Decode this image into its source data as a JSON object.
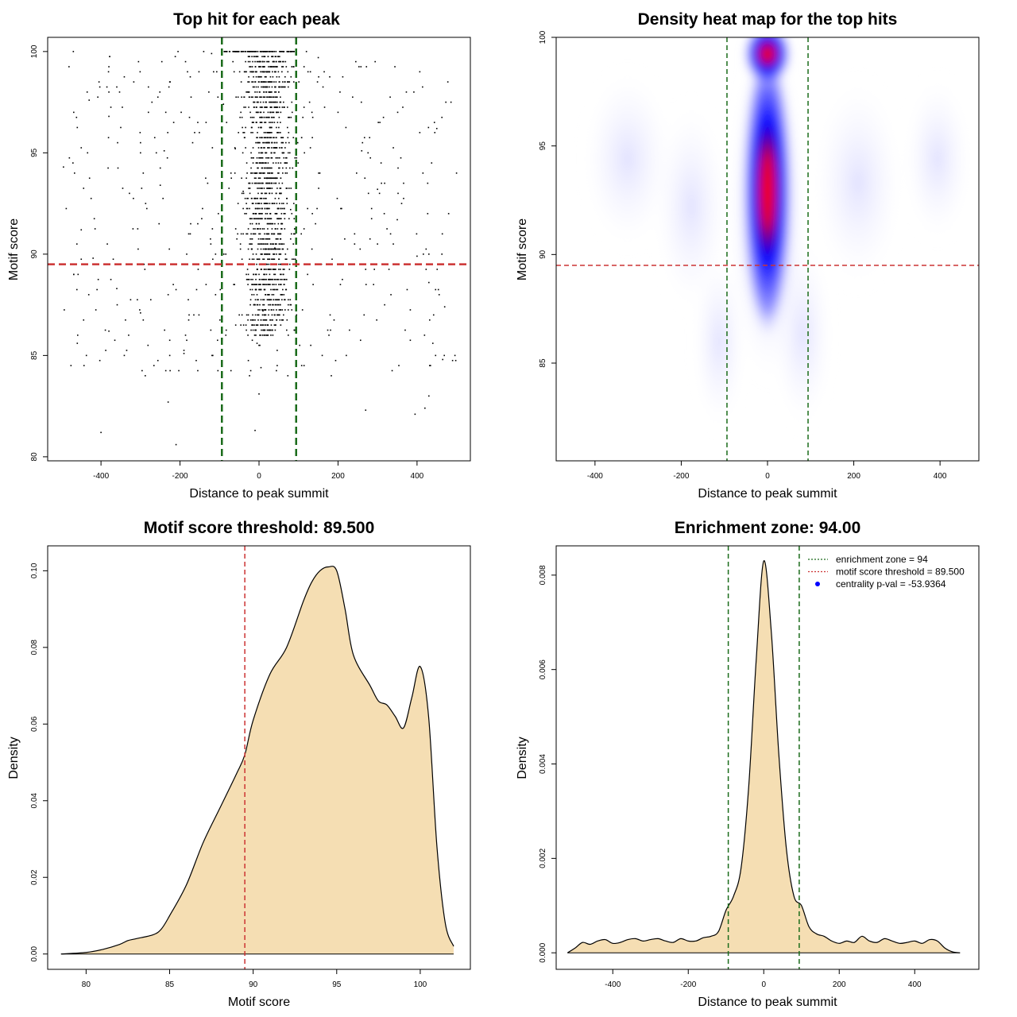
{
  "chart_data": [
    {
      "type": "scatter",
      "title": "Top hit for each peak",
      "xlabel": "Distance to peak summit",
      "ylabel": "Motif score",
      "xlim": [
        -535,
        535
      ],
      "ylim": [
        79.8,
        100.7
      ],
      "xticks": [
        -400,
        -200,
        0,
        200,
        400
      ],
      "yticks": [
        80,
        85,
        90,
        95,
        100
      ],
      "vlines": [
        -94,
        94
      ],
      "hline": 89.5,
      "line_colors": {
        "vline": "#1a6b1a",
        "hline": "#cc3333"
      },
      "point_color": "#000000",
      "points_sample": [
        [
          -470,
          100
        ],
        [
          -430,
          97.6
        ],
        [
          -380,
          96.8
        ],
        [
          -300,
          95
        ],
        [
          -250,
          93.4
        ],
        [
          -450,
          91.2
        ],
        [
          -420,
          89.8
        ],
        [
          -360,
          88.3
        ],
        [
          -300,
          87.1
        ],
        [
          -380,
          86.2
        ],
        [
          -460,
          85.6
        ],
        [
          -190,
          85.1
        ],
        [
          -230,
          82.7
        ],
        [
          -400,
          81.2
        ],
        [
          -210,
          80.6
        ],
        [
          -90,
          97.4
        ],
        [
          -60,
          95.2
        ],
        [
          -40,
          93.1
        ],
        [
          -20,
          91.0
        ],
        [
          0,
          89.0
        ],
        [
          10,
          87.2
        ],
        [
          -5,
          85.6
        ],
        [
          5,
          84.4
        ],
        [
          0,
          83.1
        ],
        [
          -10,
          81.3
        ],
        [
          30,
          96.5
        ],
        [
          60,
          94.0
        ],
        [
          80,
          92.2
        ],
        [
          40,
          90.3
        ],
        [
          150,
          99.7
        ],
        [
          200,
          97.0
        ],
        [
          260,
          95.1
        ],
        [
          300,
          93.2
        ],
        [
          350,
          91.7
        ],
        [
          400,
          89.9
        ],
        [
          430,
          88.6
        ],
        [
          470,
          87.4
        ],
        [
          440,
          85.6
        ],
        [
          465,
          84.8
        ],
        [
          430,
          83.0
        ],
        [
          420,
          82.4
        ],
        [
          395,
          82.1
        ],
        [
          270,
          82.3
        ],
        [
          450,
          96.2
        ],
        [
          500,
          94.0
        ],
        [
          480,
          92.0
        ],
        [
          -495,
          94.3
        ],
        [
          -240,
          95.1
        ],
        [
          -120,
          99.9
        ],
        [
          120,
          100
        ]
      ]
    },
    {
      "type": "heatmap",
      "title": "Density heat map for the top hits",
      "xlabel": "Distance to peak summit",
      "ylabel": "Motif score",
      "xlim": [
        -490,
        490
      ],
      "ylim": [
        80.5,
        100
      ],
      "xticks": [
        -400,
        -200,
        0,
        200,
        400
      ],
      "yticks": [
        85,
        90,
        95,
        100
      ],
      "vlines": [
        -94,
        94
      ],
      "hline": 89.5,
      "color_scale": [
        "#ffffff",
        "#0000ff",
        "#ff0000"
      ],
      "peak": {
        "x": 2,
        "y": 94.0
      }
    },
    {
      "type": "area",
      "title": "Motif score threshold: 89.500",
      "xlabel": "Motif score",
      "ylabel": "Density",
      "xlim": [
        77.7,
        103.0
      ],
      "ylim": [
        -0.004,
        0.1065
      ],
      "xticks": [
        80,
        85,
        90,
        95,
        100
      ],
      "yticks": [
        0.0,
        0.02,
        0.04,
        0.06,
        0.08,
        0.1
      ],
      "ytick_labels": [
        "0.00",
        "0.02",
        "0.04",
        "0.06",
        "0.08",
        "0.10"
      ],
      "vline": 89.5,
      "fill_color": "#f5deb3",
      "x": [
        78.5,
        80,
        81,
        82,
        82.5,
        83,
        84,
        84.5,
        85,
        86,
        87,
        88,
        89,
        89.5,
        90,
        91,
        92,
        93,
        93.5,
        94,
        94.5,
        95,
        95.5,
        96,
        97,
        97.5,
        98,
        98.5,
        99,
        99.5,
        100,
        100.5,
        101,
        101.5,
        102
      ],
      "y": [
        0.0,
        0.0004,
        0.0012,
        0.0025,
        0.0035,
        0.004,
        0.005,
        0.0065,
        0.01,
        0.018,
        0.029,
        0.038,
        0.047,
        0.052,
        0.061,
        0.073,
        0.08,
        0.092,
        0.097,
        0.1,
        0.101,
        0.1,
        0.09,
        0.078,
        0.07,
        0.066,
        0.065,
        0.062,
        0.059,
        0.067,
        0.075,
        0.062,
        0.028,
        0.008,
        0.002
      ]
    },
    {
      "type": "area",
      "title": "Enrichment zone: 94.00",
      "xlabel": "Distance to peak summit",
      "ylabel": "Density",
      "xlim": [
        -550,
        570
      ],
      "ylim": [
        -0.00035,
        0.00862
      ],
      "xticks": [
        -400,
        -200,
        0,
        200,
        400
      ],
      "yticks": [
        0.0,
        0.002,
        0.004,
        0.006,
        0.008
      ],
      "ytick_labels": [
        "0.000",
        "0.002",
        "0.004",
        "0.006",
        "0.008"
      ],
      "vlines": [
        -94,
        94
      ],
      "fill_color": "#f5deb3",
      "legend": {
        "position": "top-right",
        "entries": [
          {
            "label": "enrichment zone = 94",
            "color": "#1a6b1a",
            "style": "dotted-line"
          },
          {
            "label": "motif score threshold = 89.500",
            "color": "#cc3333",
            "style": "dotted-line"
          },
          {
            "label": "centrality p-val = -53.9364",
            "color": "#0000ff",
            "style": "point"
          }
        ]
      },
      "x": [
        -520,
        -500,
        -480,
        -460,
        -440,
        -420,
        -400,
        -380,
        -360,
        -340,
        -320,
        -300,
        -280,
        -260,
        -240,
        -220,
        -200,
        -180,
        -160,
        -140,
        -120,
        -100,
        -80,
        -60,
        -40,
        -20,
        0,
        20,
        40,
        60,
        80,
        100,
        120,
        140,
        160,
        180,
        200,
        220,
        240,
        260,
        280,
        300,
        320,
        340,
        360,
        380,
        400,
        420,
        440,
        460,
        480,
        500,
        520
      ],
      "y": [
        0.0,
        0.0001,
        0.00022,
        0.00018,
        0.00025,
        0.00028,
        0.0002,
        0.00022,
        0.00028,
        0.0003,
        0.00025,
        0.00028,
        0.0003,
        0.00025,
        0.00022,
        0.0003,
        0.00025,
        0.00025,
        0.00032,
        0.00035,
        0.00045,
        0.0009,
        0.0012,
        0.0018,
        0.0035,
        0.0062,
        0.0083,
        0.0068,
        0.0042,
        0.0022,
        0.0012,
        0.001,
        0.00055,
        0.0004,
        0.00035,
        0.00025,
        0.0002,
        0.00025,
        0.00022,
        0.00035,
        0.00025,
        0.00022,
        0.0003,
        0.00025,
        0.0002,
        0.00022,
        0.00025,
        0.0002,
        0.00028,
        0.00025,
        0.0001,
        2e-05,
        0.0
      ]
    }
  ]
}
